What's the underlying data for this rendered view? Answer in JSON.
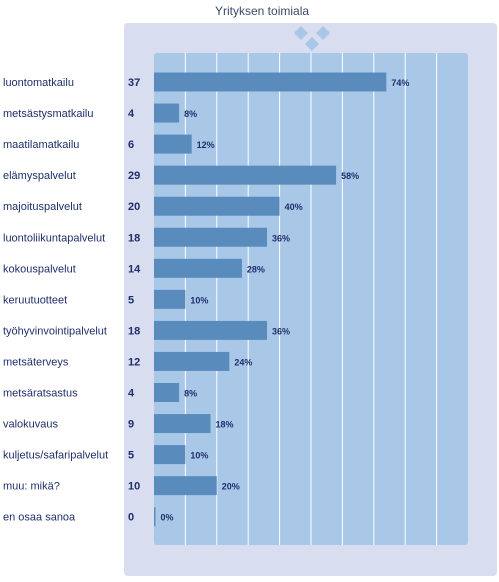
{
  "colors": {
    "outer_panel": "#d8ddef",
    "plot_area": "#a9c8e8",
    "bar": "#5a8bbd",
    "gridline": "#ffffff",
    "text": "#1f2f6b",
    "diamond": "#a9c8e8"
  },
  "chart_data": {
    "type": "bar",
    "orientation": "horizontal",
    "title": "Yrityksen toimiala",
    "xlabel": "",
    "ylabel": "",
    "xlim": [
      0,
      100
    ],
    "grid": true,
    "legend": "none",
    "categories": [
      "luontomatkailu",
      "metsästysmatkailu",
      "maatilamatkailu",
      "elämyspalvelut",
      "majoituspalvelut",
      "luontoliikuntapalvelut",
      "kokouspalvelut",
      "keruutuotteet",
      "työhyvinvointipalvelut",
      "metsäterveys",
      "metsäratsastus",
      "valokuvaus",
      "kuljetus/safaripalvelut",
      "muu: mikä?",
      "en osaa sanoa"
    ],
    "counts": [
      37,
      4,
      6,
      29,
      20,
      18,
      14,
      5,
      18,
      12,
      4,
      9,
      5,
      10,
      0
    ],
    "values": [
      74,
      8,
      12,
      58,
      40,
      36,
      28,
      10,
      36,
      24,
      8,
      18,
      10,
      20,
      0
    ],
    "value_labels": [
      "74%",
      "8%",
      "12%",
      "58%",
      "40%",
      "36%",
      "28%",
      "10%",
      "36%",
      "24%",
      "8%",
      "18%",
      "10%",
      "20%",
      "0%"
    ]
  }
}
